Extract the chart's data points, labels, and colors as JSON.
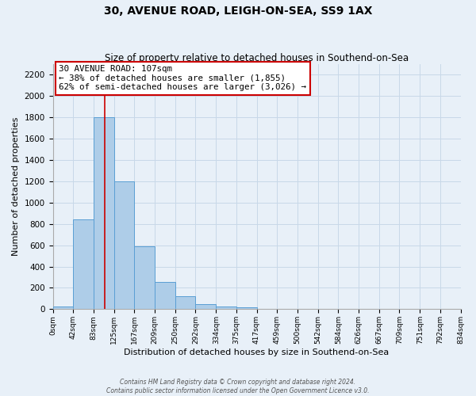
{
  "title": "30, AVENUE ROAD, LEIGH-ON-SEA, SS9 1AX",
  "subtitle": "Size of property relative to detached houses in Southend-on-Sea",
  "xlabel": "Distribution of detached houses by size in Southend-on-Sea",
  "ylabel": "Number of detached properties",
  "bar_edges": [
    0,
    42,
    83,
    125,
    167,
    209,
    250,
    292,
    334,
    375,
    417,
    459,
    500,
    542,
    584,
    626,
    667,
    709,
    751,
    792,
    834
  ],
  "bar_heights": [
    25,
    840,
    1800,
    1200,
    590,
    255,
    120,
    45,
    25,
    20,
    5,
    0,
    0,
    0,
    0,
    0,
    0,
    0,
    0,
    0
  ],
  "bar_color": "#aecde8",
  "bar_edge_color": "#5a9fd4",
  "grid_color": "#c8d8e8",
  "bg_color": "#e8f0f8",
  "red_line_x": 107,
  "annotation_title": "30 AVENUE ROAD: 107sqm",
  "annotation_line1": "← 38% of detached houses are smaller (1,855)",
  "annotation_line2": "62% of semi-detached houses are larger (3,026) →",
  "annotation_box_color": "#ffffff",
  "annotation_box_edge": "#cc0000",
  "red_line_color": "#cc0000",
  "ylim": [
    0,
    2300
  ],
  "yticks": [
    0,
    200,
    400,
    600,
    800,
    1000,
    1200,
    1400,
    1600,
    1800,
    2000,
    2200
  ],
  "tick_labels": [
    "0sqm",
    "42sqm",
    "83sqm",
    "125sqm",
    "167sqm",
    "209sqm",
    "250sqm",
    "292sqm",
    "334sqm",
    "375sqm",
    "417sqm",
    "459sqm",
    "500sqm",
    "542sqm",
    "584sqm",
    "626sqm",
    "667sqm",
    "709sqm",
    "751sqm",
    "792sqm",
    "834sqm"
  ],
  "footer1": "Contains HM Land Registry data © Crown copyright and database right 2024.",
  "footer2": "Contains public sector information licensed under the Open Government Licence v3.0."
}
